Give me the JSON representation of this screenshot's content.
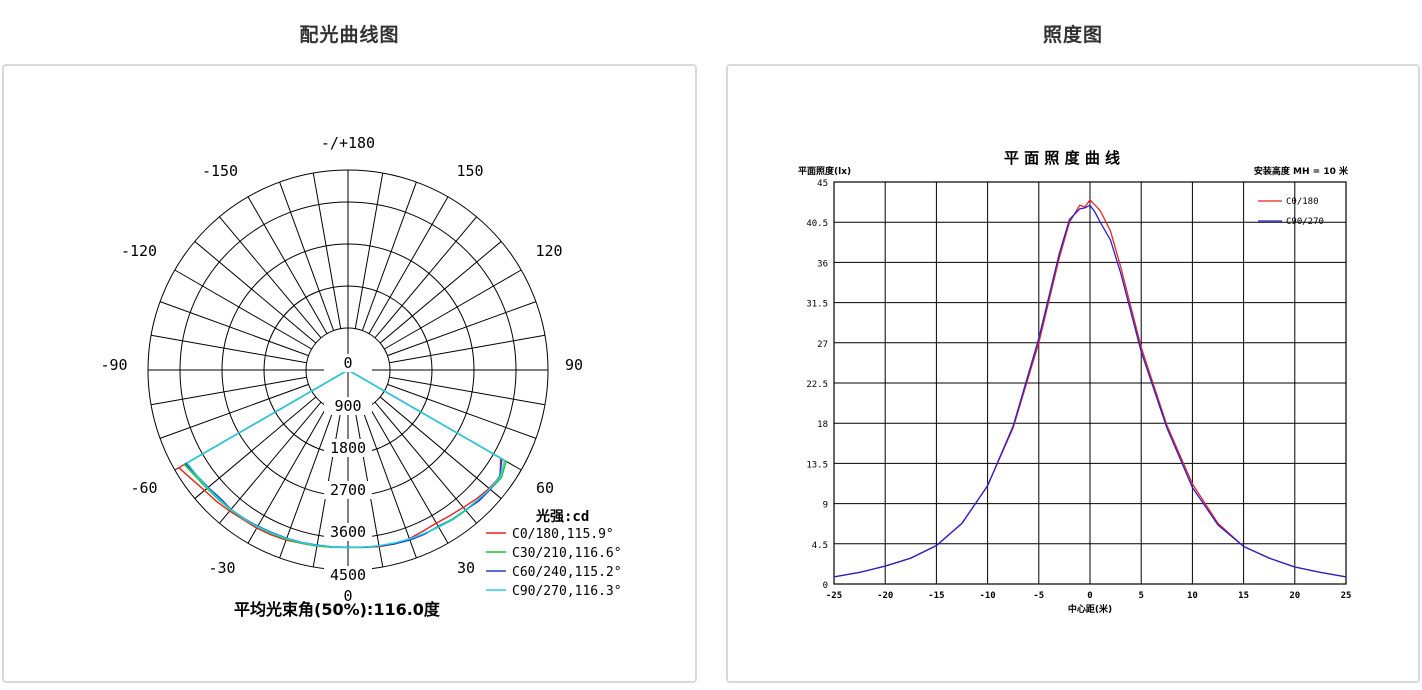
{
  "panels": {
    "left_title": "配光曲线图",
    "right_title": "照度图"
  },
  "chart_data": [
    {
      "type": "polar",
      "angle_labels": {
        "top": "-/+180",
        "upper_left": "-150",
        "upper_right": "150",
        "mid_left": "-120",
        "mid_right": "120",
        "left": "-90",
        "right": "90",
        "lower_left": "-60",
        "lower_right": "60",
        "bottom_left": "-30",
        "bottom_right": "30",
        "bottom": "0"
      },
      "radial_ticks": [
        "0",
        "900",
        "1800",
        "2700",
        "3600",
        "4500"
      ],
      "radial_max": 4500,
      "legend_title": "光强:cd",
      "beam_angle_text": "平均光束角(50%):116.0度",
      "series": [
        {
          "name": "C0/180,115.9°",
          "color": "#e8231e",
          "angles": [
            -60,
            -55,
            -50,
            -45,
            -40,
            -35,
            -30,
            -25,
            -20,
            -15,
            -10,
            -5,
            0,
            5,
            10,
            15,
            20,
            25,
            30,
            35,
            40,
            45,
            50,
            55,
            60
          ],
          "values": [
            4800,
            4650,
            4550,
            4500,
            4450,
            4400,
            4400,
            4380,
            4350,
            4300,
            4280,
            4250,
            4230,
            4250,
            4300,
            4320,
            4300,
            4250,
            4220,
            4250,
            4300,
            4380,
            4450,
            4500,
            4200
          ]
        },
        {
          "name": "C30/210,116.6°",
          "color": "#22c422",
          "angles": [
            -60,
            -55,
            -50,
            -45,
            -40,
            -35,
            -30,
            -25,
            -20,
            -15,
            -10,
            -5,
            0,
            5,
            10,
            15,
            20,
            25,
            30,
            35,
            40,
            45,
            50,
            55,
            60
          ],
          "values": [
            4600,
            4500,
            4450,
            4420,
            4400,
            4380,
            4360,
            4340,
            4320,
            4300,
            4280,
            4260,
            4240,
            4260,
            4280,
            4300,
            4320,
            4340,
            4360,
            4400,
            4420,
            4450,
            4500,
            4550,
            4400
          ]
        },
        {
          "name": "C60/240,115.2°",
          "color": "#1f3fd6",
          "angles": [
            -60,
            -55,
            -50,
            -45,
            -40,
            -35,
            -30,
            -25,
            -20,
            -15,
            -10,
            -5,
            0,
            5,
            10,
            15,
            20,
            25,
            30,
            35,
            40,
            45,
            50,
            55,
            60
          ],
          "values": [
            4550,
            4450,
            4400,
            4350,
            4380,
            4360,
            4330,
            4300,
            4290,
            4270,
            4250,
            4240,
            4230,
            4260,
            4280,
            4320,
            4350,
            4360,
            4330,
            4380,
            4400,
            4480,
            4500,
            4480,
            4250
          ]
        },
        {
          "name": "C90/270,116.3°",
          "color": "#22d3e0",
          "angles": [
            -60,
            -55,
            -50,
            -45,
            -40,
            -35,
            -30,
            -25,
            -20,
            -15,
            -10,
            -5,
            0,
            5,
            10,
            15,
            20,
            25,
            30,
            35,
            40,
            45,
            50,
            55,
            60
          ],
          "values": [
            4500,
            4450,
            4420,
            4400,
            4390,
            4370,
            4350,
            4320,
            4300,
            4280,
            4260,
            4250,
            4240,
            4250,
            4270,
            4290,
            4310,
            4330,
            4350,
            4380,
            4400,
            4430,
            4480,
            4500,
            4350
          ]
        }
      ]
    },
    {
      "type": "line",
      "title": "平 面 照 度 曲 线",
      "ylabel": "平面照度(lx)",
      "xlabel": "中心距(米)",
      "mount_height_text": "安装高度 MH = 10 米",
      "xlim": [
        -25,
        25
      ],
      "ylim": [
        0,
        45
      ],
      "x_ticks": [
        "-25",
        "-20",
        "-15",
        "-10",
        "-5",
        "0",
        "5",
        "10",
        "15",
        "20",
        "25"
      ],
      "y_ticks": [
        "0",
        "4.5",
        "9",
        "13.5",
        "18",
        "22.5",
        "27",
        "31.5",
        "36",
        "40.5",
        "45"
      ],
      "series": [
        {
          "name": "C0/180",
          "color": "#e8231e",
          "x": [
            -25,
            -22.5,
            -20,
            -17.5,
            -15,
            -12.5,
            -10,
            -7.5,
            -5,
            -3,
            -2,
            -1,
            -0.5,
            0,
            0.5,
            1,
            2,
            3,
            5,
            7.5,
            10,
            12.5,
            15,
            17.5,
            20,
            22.5,
            25
          ],
          "y": [
            0.8,
            1.3,
            2.0,
            2.9,
            4.3,
            6.8,
            11.0,
            17.5,
            27.0,
            36.5,
            40.5,
            42.4,
            42.2,
            43.0,
            42.4,
            41.8,
            39.5,
            35.5,
            26.5,
            17.8,
            11.2,
            6.8,
            4.2,
            2.9,
            1.9,
            1.3,
            0.8
          ]
        },
        {
          "name": "C90/270",
          "color": "#2a1fd0",
          "x": [
            -25,
            -22.5,
            -20,
            -17.5,
            -15,
            -12.5,
            -10,
            -7.5,
            -5,
            -3,
            -2,
            -1,
            -0.5,
            0,
            0.5,
            1,
            2,
            3,
            5,
            7.5,
            10,
            12.5,
            15,
            17.5,
            20,
            22.5,
            25
          ],
          "y": [
            0.8,
            1.3,
            2.0,
            2.9,
            4.3,
            6.8,
            11.0,
            17.7,
            27.5,
            37.0,
            40.8,
            42.0,
            42.1,
            42.4,
            41.6,
            40.5,
            38.5,
            34.8,
            26.0,
            17.5,
            10.8,
            6.6,
            4.2,
            2.9,
            1.9,
            1.3,
            0.8
          ]
        }
      ]
    }
  ]
}
